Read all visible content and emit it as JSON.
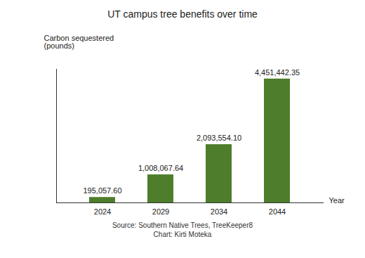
{
  "chart_data": {
    "type": "bar",
    "title": "UT campus tree benefits over time",
    "y_label": "Carbon sequestered (pounds)",
    "x_label": "Year",
    "categories": [
      "2024",
      "2029",
      "2034",
      "2044"
    ],
    "values": [
      195057.6,
      1008067.64,
      2093554.1,
      4451442.35
    ],
    "value_labels": [
      "195,057.60",
      "1,008,067.64",
      "2,093,554.10",
      "4,451,442.35"
    ],
    "data_labels": true,
    "color": "#4e7d2b",
    "ylim": [
      0,
      4800000
    ],
    "tick_labels": "x",
    "grid": false,
    "source": "Source: Southern Native Trees, TreeKeeper8",
    "credit": "Chart: Kirti Moteka"
  }
}
